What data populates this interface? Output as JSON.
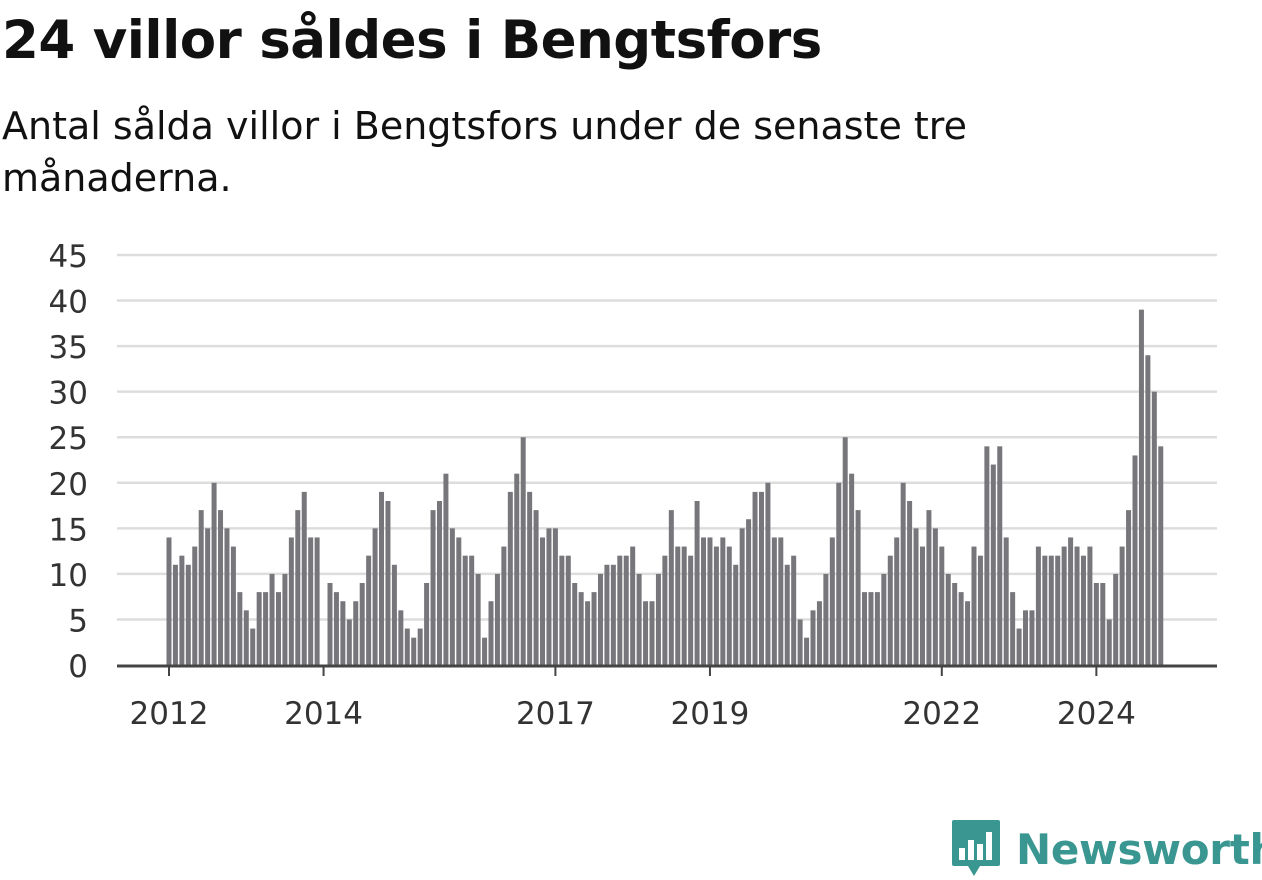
{
  "header": {
    "title": "24 villor såldes i Bengtsfors",
    "subtitle": "Antal sålda villor i Bengtsfors under de senaste tre månaderna."
  },
  "brand": {
    "name": "Newsworthy",
    "color": "#3a9690"
  },
  "colors": {
    "bar": "#77767b",
    "highlight": "#1a9c96",
    "grid": "#dddddd",
    "axis": "#444444"
  },
  "chart_data": {
    "type": "bar",
    "title": "24 villor såldes i Bengtsfors",
    "subtitle": "Antal sålda villor i Bengtsfors under de senaste tre månaderna.",
    "ylim": [
      0,
      45
    ],
    "yticks": [
      0,
      5,
      10,
      15,
      20,
      25,
      30,
      35,
      40,
      45
    ],
    "xticks": [
      "2012",
      "2014",
      "2017",
      "2019",
      "2022",
      "2024"
    ],
    "xtick_positions": [
      0,
      24,
      60,
      84,
      120,
      144
    ],
    "grid": true,
    "values": [
      14,
      11,
      12,
      11,
      13,
      17,
      15,
      20,
      17,
      15,
      13,
      8,
      6,
      4,
      8,
      8,
      10,
      8,
      10,
      14,
      17,
      19,
      14,
      14,
      null,
      9,
      8,
      7,
      5,
      7,
      9,
      12,
      15,
      19,
      18,
      11,
      6,
      4,
      3,
      4,
      9,
      17,
      18,
      21,
      15,
      14,
      12,
      12,
      10,
      3,
      7,
      10,
      13,
      19,
      21,
      25,
      19,
      17,
      14,
      15,
      15,
      12,
      12,
      9,
      8,
      7,
      8,
      10,
      11,
      11,
      12,
      12,
      13,
      10,
      7,
      7,
      10,
      12,
      17,
      13,
      13,
      12,
      18,
      14,
      14,
      13,
      14,
      13,
      11,
      15,
      16,
      19,
      19,
      20,
      14,
      14,
      11,
      12,
      5,
      3,
      6,
      7,
      10,
      14,
      20,
      25,
      21,
      17,
      8,
      8,
      8,
      10,
      12,
      14,
      20,
      18,
      15,
      13,
      17,
      15,
      13,
      10,
      9,
      8,
      7,
      13,
      12,
      24,
      22,
      24,
      14,
      8,
      4,
      6,
      6,
      13,
      12,
      12,
      12,
      13,
      14,
      13,
      12,
      13,
      9,
      9,
      5,
      10,
      13,
      17,
      23,
      39,
      34,
      30,
      24
    ],
    "highlight_index": 155,
    "highlight_label": "24"
  }
}
